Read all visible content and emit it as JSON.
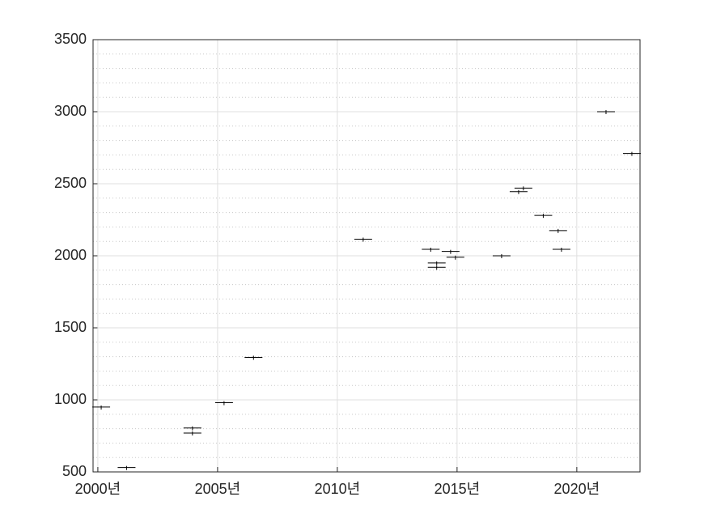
{
  "chart_data": {
    "type": "scatter",
    "marker": "hline",
    "color": "#000000",
    "x": [
      2000.14,
      2001.2,
      2003.95,
      2003.95,
      2005.27,
      2006.5,
      2011.08,
      2013.9,
      2014.15,
      2014.15,
      2014.73,
      2014.93,
      2016.86,
      2017.57,
      2017.77,
      2018.6,
      2019.22,
      2019.36,
      2021.22,
      2022.3
    ],
    "values": [
      950,
      530,
      805,
      770,
      980,
      1295,
      2115,
      2045,
      1950,
      1920,
      2030,
      1990,
      2000,
      2445,
      2470,
      2280,
      2175,
      2045,
      3000,
      2710
    ],
    "xlim": [
      1999.8,
      2022.64
    ],
    "xticks": [
      {
        "value": 2000,
        "label": "2000년"
      },
      {
        "value": 2005,
        "label": "2005년"
      },
      {
        "value": 2010,
        "label": "2010년"
      },
      {
        "value": 2015,
        "label": "2015년"
      },
      {
        "value": 2020,
        "label": "2020년"
      }
    ],
    "ylim": [
      500,
      3500
    ],
    "yticks": [
      500,
      1000,
      1500,
      2000,
      2500,
      3000,
      3500
    ],
    "yminorticks": [
      600,
      700,
      800,
      900,
      1100,
      1200,
      1300,
      1400,
      1600,
      1700,
      1800,
      1900,
      2100,
      2200,
      2300,
      2400,
      2600,
      2700,
      2800,
      2900,
      3100,
      3200,
      3300,
      3400
    ],
    "grid": true,
    "minor_grid": true
  }
}
